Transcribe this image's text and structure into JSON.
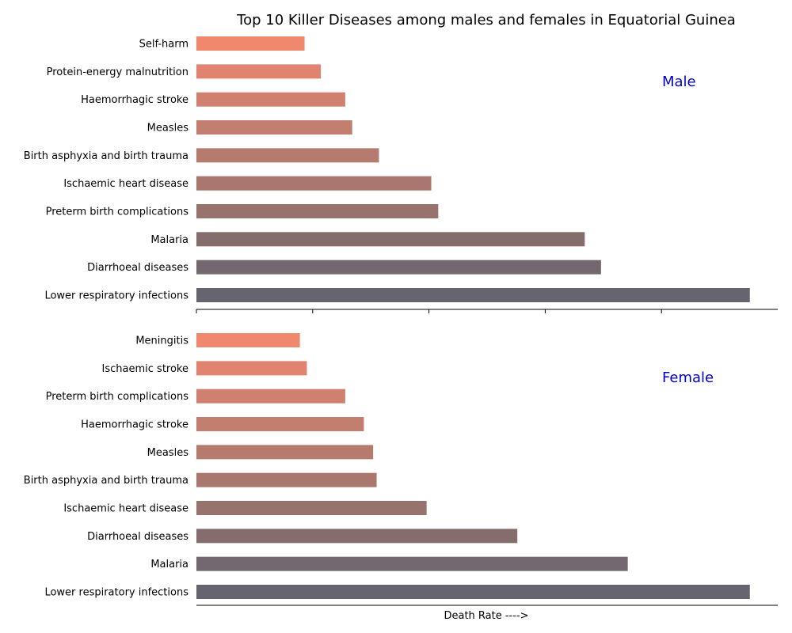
{
  "chart_data": {
    "type": "bar",
    "orientation": "horizontal",
    "title": "Top 10 Killer Diseases among males and females in Equatorial Guinea",
    "xlabel": "Death Rate ---->",
    "x_ticks": [
      0,
      1,
      2,
      3,
      4
    ],
    "xlim": [
      0,
      5
    ],
    "panels": [
      {
        "label": "Male",
        "label_color": "#0000cd",
        "categories": [
          "Lower respiratory infections",
          "Diarrhoeal diseases",
          "Malaria",
          "Preterm birth complications",
          "Ischaemic heart disease",
          "Birth asphyxia and birth trauma",
          "Measles",
          "Haemorrhagic stroke",
          "Protein-energy malnutrition",
          "Self-harm"
        ],
        "values": [
          4.76,
          3.48,
          3.34,
          2.08,
          2.02,
          1.57,
          1.34,
          1.28,
          1.07,
          0.93
        ]
      },
      {
        "label": "Female",
        "label_color": "#0000cd",
        "categories": [
          "Lower respiratory infections",
          "Malaria",
          "Diarrhoeal diseases",
          "Ischaemic heart disease",
          "Birth asphyxia and birth trauma",
          "Measles",
          "Haemorrhagic stroke",
          "Preterm birth complications",
          "Ischaemic stroke",
          "Meningitis"
        ],
        "values": [
          4.76,
          3.71,
          2.76,
          1.98,
          1.55,
          1.52,
          1.44,
          1.28,
          0.95,
          0.89
        ]
      }
    ],
    "bar_colors": [
      "#66656f",
      "#736870",
      "#856d6d",
      "#98736d",
      "#a9776d",
      "#b57b6e",
      "#c27e6f",
      "#d0806f",
      "#e08470",
      "#f0886d"
    ]
  }
}
